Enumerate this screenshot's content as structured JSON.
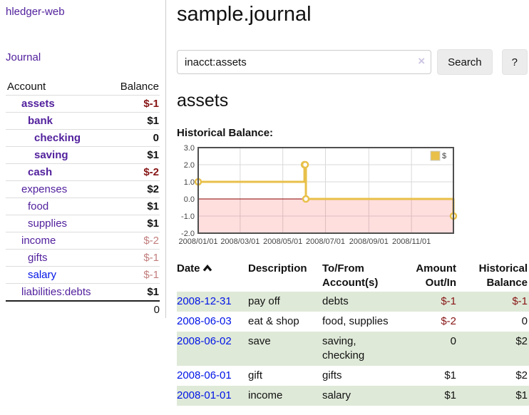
{
  "colors": {
    "link_purple": "#52219d",
    "link_blue": "#0014e6",
    "negative_strong": "#871515",
    "negative_muted": "#c27d7d",
    "row_green": "#dfe9d8",
    "series_gold": "#e8c04a"
  },
  "sidebar": {
    "app_title": "hledger-web",
    "nav_journal": "Journal",
    "table": {
      "account_header": "Account",
      "balance_header": "Balance",
      "rows": [
        {
          "name": "assets",
          "depth": 1,
          "bold": true,
          "link_color": "purple",
          "balance": "$-1",
          "balance_class": "neg",
          "balance_bold": true
        },
        {
          "name": "bank",
          "depth": 2,
          "bold": true,
          "link_color": "purple",
          "balance": "$1",
          "balance_class": "pos",
          "balance_bold": true
        },
        {
          "name": "checking",
          "depth": 3,
          "bold": true,
          "link_color": "purple",
          "balance": "0",
          "balance_class": "pos",
          "balance_bold": true
        },
        {
          "name": "saving",
          "depth": 3,
          "bold": true,
          "link_color": "purple",
          "balance": "$1",
          "balance_class": "pos",
          "balance_bold": true
        },
        {
          "name": "cash",
          "depth": 2,
          "bold": true,
          "link_color": "purple",
          "balance": "$-2",
          "balance_class": "neg",
          "balance_bold": true
        },
        {
          "name": "expenses",
          "depth": 1,
          "bold": false,
          "link_color": "purple",
          "balance": "$2",
          "balance_class": "pos",
          "balance_bold": true
        },
        {
          "name": "food",
          "depth": 2,
          "bold": false,
          "link_color": "purple",
          "balance": "$1",
          "balance_class": "pos",
          "balance_bold": true
        },
        {
          "name": "supplies",
          "depth": 2,
          "bold": false,
          "link_color": "purple",
          "balance": "$1",
          "balance_class": "pos",
          "balance_bold": true
        },
        {
          "name": "income",
          "depth": 1,
          "bold": false,
          "link_color": "purple",
          "balance": "$-2",
          "balance_class": "negmuted",
          "balance_bold": false
        },
        {
          "name": "gifts",
          "depth": 2,
          "bold": false,
          "link_color": "purple",
          "balance": "$-1",
          "balance_class": "negmuted",
          "balance_bold": false
        },
        {
          "name": "salary",
          "depth": 2,
          "bold": false,
          "link_color": "blue",
          "balance": "$-1",
          "balance_class": "negmuted",
          "balance_bold": false
        },
        {
          "name": "liabilities:debts",
          "depth": 1,
          "bold": false,
          "link_color": "purple",
          "balance": "$1",
          "balance_class": "pos",
          "balance_bold": true
        }
      ],
      "total": "0"
    }
  },
  "header": {
    "title": "sample.journal"
  },
  "search": {
    "value": "inacct:assets",
    "clear_icon": "×",
    "button_label": "Search",
    "help_label": "?"
  },
  "account_page": {
    "title": "assets"
  },
  "chart_data": {
    "type": "line",
    "title": "Historical Balance:",
    "steps": true,
    "x_type": "date",
    "xlim": [
      "2008-01-01",
      "2008-12-31"
    ],
    "ylim": [
      -2,
      3
    ],
    "yticks": [
      3.0,
      2.0,
      1.0,
      0.0,
      -1.0,
      -2.0
    ],
    "xticks": [
      {
        "date": "2008-01-01",
        "label": "2008/01/01"
      },
      {
        "date": "2008-03-01",
        "label": "2008/03/01"
      },
      {
        "date": "2008-05-01",
        "label": "2008/05/01"
      },
      {
        "date": "2008-07-01",
        "label": "2008/07/01"
      },
      {
        "date": "2008-09-01",
        "label": "2008/09/01"
      },
      {
        "date": "2008-11-01",
        "label": "2008/11/01"
      }
    ],
    "series": [
      {
        "name": "$",
        "color": "#e8c04a",
        "points": [
          {
            "date": "2008-01-01",
            "value": 1
          },
          {
            "date": "2008-06-01",
            "value": 2
          },
          {
            "date": "2008-06-02",
            "value": 2
          },
          {
            "date": "2008-06-03",
            "value": 0
          },
          {
            "date": "2008-12-31",
            "value": -1
          }
        ]
      }
    ],
    "legend": [
      {
        "label": "$",
        "color": "#e8c04a"
      }
    ],
    "legend_position": "top-right",
    "grid": true,
    "grid_color": "#d9d9d9",
    "border_color": "#4f4f4f",
    "negative_region_fill": "rgba(255,0,0,0.13)",
    "zero_line_color": "#8b0000",
    "tick_label_color": "#444444"
  },
  "register": {
    "columns": {
      "date": "Date",
      "description": "Description",
      "tofrom": "To/From Account(s)",
      "amount": "Amount Out/In",
      "balance": "Historical Balance"
    },
    "rows": [
      {
        "date": "2008-12-31",
        "description": "pay off",
        "accounts": "debts",
        "amount": "$-1",
        "amount_class": "neg",
        "balance": "$-1",
        "balance_class": "neg"
      },
      {
        "date": "2008-06-03",
        "description": "eat & shop",
        "accounts": "food, supplies",
        "amount": "$-2",
        "amount_class": "neg",
        "balance": "0",
        "balance_class": "pos"
      },
      {
        "date": "2008-06-02",
        "description": "save",
        "accounts": "saving, checking",
        "amount": "0",
        "amount_class": "pos",
        "balance": "$2",
        "balance_class": "pos"
      },
      {
        "date": "2008-06-01",
        "description": "gift",
        "accounts": "gifts",
        "amount": "$1",
        "amount_class": "pos",
        "balance": "$2",
        "balance_class": "pos"
      },
      {
        "date": "2008-01-01",
        "description": "income",
        "accounts": "salary",
        "amount": "$1",
        "amount_class": "pos",
        "balance": "$1",
        "balance_class": "pos"
      }
    ]
  }
}
